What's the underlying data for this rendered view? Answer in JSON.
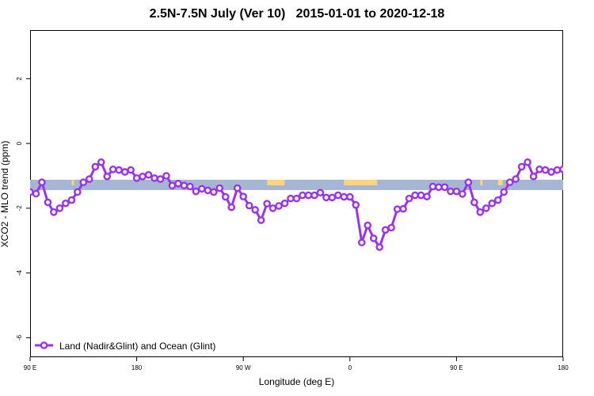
{
  "chart_data": {
    "type": "line",
    "title": "2.5N-7.5N July (Ver 10)   2015-01-01 to 2020-12-18",
    "xlabel": "Longitude (deg E)",
    "ylabel": "XCO2 - MLO trend (ppm)",
    "x_ticks": [
      {
        "value": 90,
        "label": "90 E"
      },
      {
        "value": 180,
        "label": "180"
      },
      {
        "value": 270,
        "label": "90 W"
      },
      {
        "value": 360,
        "label": "0"
      },
      {
        "value": 450,
        "label": "90 E"
      },
      {
        "value": 540,
        "label": "180"
      }
    ],
    "y_ticks": [
      {
        "value": 2,
        "label": "2"
      },
      {
        "value": 0,
        "label": "0"
      },
      {
        "value": -2,
        "label": "-2"
      },
      {
        "value": -4,
        "label": "-4"
      },
      {
        "value": -6,
        "label": "-6"
      }
    ],
    "xlim": [
      90,
      540
    ],
    "ylim": [
      -6.6,
      3.5
    ],
    "grid": false,
    "legend_position": "bottom-left",
    "land_strip": {
      "y_center": -1.28,
      "ocean_color": "#a4b6d4",
      "land_color": "#fcd47a"
    },
    "land_segments": [
      [
        97,
        99
      ],
      [
        125,
        127
      ],
      [
        290,
        305
      ],
      [
        355,
        383
      ],
      [
        470,
        472
      ],
      [
        485,
        489
      ]
    ],
    "series": [
      {
        "name": "Land (Nadir&Glint) and Ocean (Glint)",
        "color": "#9933ee",
        "x": [
          90,
          95,
          100,
          105,
          110,
          115,
          120,
          125,
          130,
          135,
          140,
          145,
          150,
          155,
          160,
          165,
          170,
          175,
          180,
          185,
          190,
          195,
          200,
          205,
          210,
          215,
          220,
          225,
          230,
          235,
          240,
          245,
          250,
          255,
          260,
          265,
          270,
          275,
          280,
          285,
          290,
          295,
          300,
          305,
          310,
          315,
          320,
          325,
          330,
          335,
          340,
          345,
          350,
          355,
          360,
          365,
          370,
          375,
          380,
          385,
          390,
          395,
          400,
          405,
          410,
          415,
          420,
          425,
          430,
          435,
          440,
          445,
          450,
          455,
          460,
          465,
          470,
          475,
          480,
          485,
          490,
          495,
          500,
          505,
          510,
          515,
          520,
          525,
          530,
          535,
          540
        ],
        "y": [
          -1.5,
          -1.55,
          -1.2,
          -1.82,
          -2.12,
          -2.0,
          -1.85,
          -1.75,
          -1.5,
          -1.2,
          -1.1,
          -0.72,
          -0.58,
          -1.02,
          -0.8,
          -0.82,
          -0.88,
          -0.82,
          -1.07,
          -1.02,
          -0.97,
          -1.07,
          -1.1,
          -1.0,
          -1.3,
          -1.24,
          -1.3,
          -1.33,
          -1.48,
          -1.4,
          -1.45,
          -1.5,
          -1.38,
          -1.65,
          -1.97,
          -1.38,
          -1.64,
          -1.92,
          -2.05,
          -2.37,
          -1.86,
          -2.0,
          -1.93,
          -1.85,
          -1.7,
          -1.7,
          -1.6,
          -1.6,
          -1.6,
          -1.52,
          -1.67,
          -1.67,
          -1.6,
          -1.65,
          -1.65,
          -1.9,
          -3.06,
          -2.53,
          -2.93,
          -3.2,
          -2.67,
          -2.6,
          -2.03,
          -2.02,
          -1.7,
          -1.6,
          -1.6,
          -1.64,
          -1.33,
          -1.35,
          -1.35,
          -1.48,
          -1.48,
          -1.56,
          -1.2,
          -1.82,
          -2.12,
          -2.0,
          -1.85,
          -1.75,
          -1.5,
          -1.2,
          -1.1,
          -0.72,
          -0.58,
          -1.02,
          -0.8,
          -0.82,
          -0.88,
          -0.82,
          -0.8
        ]
      }
    ]
  }
}
